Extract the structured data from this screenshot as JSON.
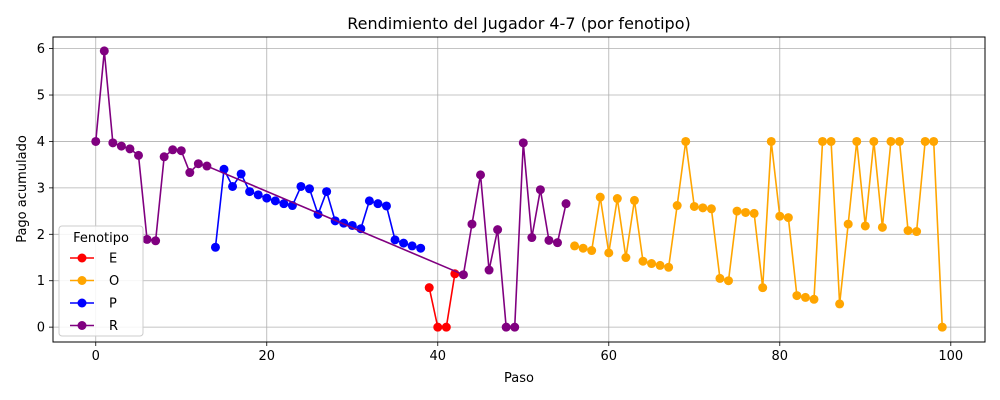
{
  "chart_data": {
    "type": "line",
    "title": "Rendimiento del Jugador 4-7 (por fenotipo)",
    "xlabel": "Paso",
    "ylabel": "Pago acumulado",
    "xlim": [
      -5,
      104
    ],
    "ylim": [
      -0.32,
      6.25
    ],
    "xticks": [
      0,
      20,
      40,
      60,
      80,
      100
    ],
    "yticks": [
      0,
      1,
      2,
      3,
      4,
      5,
      6
    ],
    "grid": true,
    "legend": {
      "title": "Fenotipo",
      "placement": "lower-left"
    },
    "series": [
      {
        "name": "E",
        "color": "#ff0000",
        "points": [
          [
            39,
            0.85
          ],
          [
            40,
            0.0
          ],
          [
            41,
            0.0
          ],
          [
            42,
            1.15
          ]
        ]
      },
      {
        "name": "O",
        "color": "#ffa500",
        "points": [
          [
            56,
            1.75
          ],
          [
            57,
            1.7
          ],
          [
            58,
            1.65
          ],
          [
            59,
            2.8
          ],
          [
            60,
            1.6
          ],
          [
            61,
            2.77
          ],
          [
            62,
            1.5
          ],
          [
            63,
            2.73
          ],
          [
            64,
            1.42
          ],
          [
            65,
            1.37
          ],
          [
            66,
            1.33
          ],
          [
            67,
            1.29
          ],
          [
            68,
            2.62
          ],
          [
            69,
            4.0
          ],
          [
            70,
            2.6
          ],
          [
            71,
            2.57
          ],
          [
            72,
            2.55
          ],
          [
            73,
            1.05
          ],
          [
            74,
            1.0
          ],
          [
            75,
            2.5
          ],
          [
            76,
            2.47
          ],
          [
            77,
            2.45
          ],
          [
            78,
            0.85
          ],
          [
            79,
            4.0
          ],
          [
            80,
            2.39
          ],
          [
            81,
            2.36
          ],
          [
            82,
            0.68
          ],
          [
            83,
            0.64
          ],
          [
            84,
            0.6
          ],
          [
            85,
            4.0
          ],
          [
            86,
            4.0
          ],
          [
            87,
            0.5
          ],
          [
            88,
            2.22
          ],
          [
            89,
            4.0
          ],
          [
            90,
            2.18
          ],
          [
            91,
            4.0
          ],
          [
            92,
            2.15
          ],
          [
            93,
            4.0
          ],
          [
            94,
            4.0
          ],
          [
            95,
            2.08
          ],
          [
            96,
            2.06
          ],
          [
            97,
            4.0
          ],
          [
            98,
            4.0
          ],
          [
            99,
            0.0
          ]
        ]
      },
      {
        "name": "P",
        "color": "#0000ff",
        "points": [
          [
            14,
            1.72
          ],
          [
            15,
            3.4
          ],
          [
            16,
            3.03
          ],
          [
            17,
            3.3
          ],
          [
            18,
            2.92
          ],
          [
            19,
            2.85
          ],
          [
            20,
            2.78
          ],
          [
            21,
            2.72
          ],
          [
            22,
            2.66
          ],
          [
            23,
            2.62
          ],
          [
            24,
            3.03
          ],
          [
            25,
            2.98
          ],
          [
            26,
            2.43
          ],
          [
            27,
            2.92
          ],
          [
            28,
            2.29
          ],
          [
            29,
            2.24
          ],
          [
            30,
            2.19
          ],
          [
            31,
            2.12
          ],
          [
            32,
            2.72
          ],
          [
            33,
            2.66
          ],
          [
            34,
            2.61
          ],
          [
            35,
            1.88
          ],
          [
            36,
            1.81
          ],
          [
            37,
            1.75
          ],
          [
            38,
            1.7
          ]
        ]
      },
      {
        "name": "R",
        "color": "#800080",
        "points": [
          [
            0,
            4.0
          ],
          [
            1,
            5.95
          ],
          [
            2,
            3.97
          ],
          [
            3,
            3.9
          ],
          [
            4,
            3.84
          ],
          [
            5,
            3.7
          ],
          [
            6,
            1.89
          ],
          [
            7,
            1.86
          ],
          [
            8,
            3.67
          ],
          [
            9,
            3.82
          ],
          [
            10,
            3.8
          ],
          [
            11,
            3.33
          ],
          [
            12,
            3.52
          ],
          [
            13,
            3.47
          ],
          [
            43,
            1.13
          ],
          [
            44,
            2.22
          ],
          [
            45,
            3.28
          ],
          [
            46,
            1.23
          ],
          [
            47,
            2.1
          ],
          [
            48,
            0.0
          ],
          [
            49,
            0.0
          ],
          [
            50,
            3.97
          ],
          [
            51,
            1.93
          ],
          [
            52,
            2.96
          ],
          [
            53,
            1.87
          ],
          [
            54,
            1.82
          ],
          [
            55,
            2.66
          ]
        ]
      }
    ]
  }
}
